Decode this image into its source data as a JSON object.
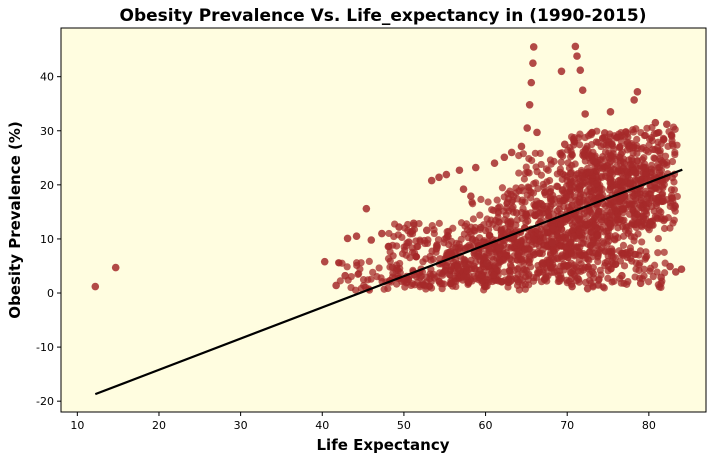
{
  "chart_data": {
    "type": "scatter",
    "title": "Obesity Prevalence Vs. Life_expectancy in (1990-2015)",
    "xlabel": "Life Expectancy",
    "ylabel": "Obesity Prevalence (%)",
    "xlim": [
      8,
      87
    ],
    "ylim": [
      -22,
      49
    ],
    "xticks": [
      10,
      20,
      30,
      40,
      50,
      60,
      70,
      80
    ],
    "yticks": [
      -20,
      -10,
      0,
      10,
      20,
      30,
      40
    ],
    "grid": false,
    "legend": "none",
    "colors": {
      "background": "#FFFDE0",
      "point": "#A52A2A",
      "regression_line": "#000000"
    },
    "series": [
      {
        "kind": "points",
        "points": [
          [
            12.2,
            1.2
          ],
          [
            14.7,
            4.7
          ],
          [
            40.3,
            5.8
          ],
          [
            41.7,
            1.4
          ],
          [
            42.8,
            3.2
          ],
          [
            43.1,
            10.1
          ],
          [
            44.2,
            10.5
          ],
          [
            45.4,
            15.6
          ],
          [
            46.0,
            9.8
          ],
          [
            47.3,
            11.0
          ],
          [
            48.1,
            8.6
          ],
          [
            49.4,
            12.2
          ],
          [
            50.6,
            9.4
          ],
          [
            51.2,
            12.9
          ],
          [
            52.1,
            3.1
          ],
          [
            52.8,
            11.6
          ],
          [
            53.4,
            20.8
          ],
          [
            54.3,
            21.4
          ],
          [
            54.0,
            8.2
          ],
          [
            55.2,
            21.9
          ],
          [
            55.6,
            3.4
          ],
          [
            56.8,
            22.7
          ],
          [
            57.3,
            19.2
          ],
          [
            58.2,
            17.9
          ],
          [
            58.8,
            23.2
          ],
          [
            59.4,
            12.1
          ],
          [
            60.2,
            5.6
          ],
          [
            61.1,
            24.0
          ],
          [
            61.7,
            8.4
          ],
          [
            62.3,
            25.1
          ],
          [
            63.2,
            26.0
          ],
          [
            63.8,
            14.8
          ],
          [
            64.4,
            27.1
          ],
          [
            65.1,
            30.5
          ],
          [
            65.4,
            34.8
          ],
          [
            65.6,
            38.9
          ],
          [
            65.8,
            42.5
          ],
          [
            65.9,
            45.5
          ],
          [
            66.3,
            29.7
          ],
          [
            66.8,
            16.5
          ],
          [
            67.4,
            2.8
          ],
          [
            68.2,
            9.3
          ],
          [
            69.3,
            41.0
          ],
          [
            69.7,
            27.5
          ],
          [
            70.4,
            22.1
          ],
          [
            70.6,
            1.2
          ],
          [
            71.0,
            45.6
          ],
          [
            71.2,
            43.8
          ],
          [
            71.6,
            41.2
          ],
          [
            71.9,
            37.5
          ],
          [
            72.2,
            33.1
          ],
          [
            72.5,
            0.8
          ],
          [
            73.3,
            24.3
          ],
          [
            73.8,
            1.5
          ],
          [
            74.6,
            29.6
          ],
          [
            75.3,
            33.5
          ],
          [
            75.9,
            5.3
          ],
          [
            76.7,
            3.2
          ],
          [
            77.4,
            27.8
          ],
          [
            78.2,
            35.7
          ],
          [
            78.6,
            37.2
          ],
          [
            79.0,
            1.8
          ],
          [
            80.1,
            12.6
          ],
          [
            80.8,
            31.5
          ],
          [
            81.5,
            2.9
          ],
          [
            82.2,
            31.2
          ],
          [
            82.6,
            4.9
          ],
          [
            83.3,
            3.9
          ],
          [
            84.0,
            4.4
          ]
        ],
        "bands": [
          {
            "x0": 42,
            "x1": 62,
            "y0": 1,
            "y1": 6
          },
          {
            "x0": 44,
            "x1": 65,
            "y0": 0.5,
            "y1": 3
          },
          {
            "x0": 50,
            "x1": 66,
            "y0": 1,
            "y1": 10
          },
          {
            "x0": 55,
            "x1": 70,
            "y0": 2,
            "y1": 12
          },
          {
            "x0": 60,
            "x1": 72,
            "y0": 2,
            "y1": 15
          },
          {
            "x0": 62,
            "x1": 74,
            "y0": 4,
            "y1": 20
          },
          {
            "x0": 66,
            "x1": 77,
            "y0": 2,
            "y1": 18
          },
          {
            "x0": 68,
            "x1": 80,
            "y0": 6,
            "y1": 24
          },
          {
            "x0": 70,
            "x1": 82,
            "y0": 10,
            "y1": 28
          },
          {
            "x0": 72,
            "x1": 83.5,
            "y0": 12,
            "y1": 30
          },
          {
            "x0": 76,
            "x1": 83.5,
            "y0": 16,
            "y1": 31
          },
          {
            "x0": 48,
            "x1": 60,
            "y0": 3,
            "y1": 13
          },
          {
            "x0": 58,
            "x1": 64,
            "y0": 8,
            "y1": 18
          },
          {
            "x0": 64,
            "x1": 70,
            "y0": 14,
            "y1": 26
          },
          {
            "x0": 70,
            "x1": 78,
            "y0": 20,
            "y1": 30
          },
          {
            "x0": 70,
            "x1": 75,
            "y0": 0.5,
            "y1": 5
          },
          {
            "x0": 74,
            "x1": 82,
            "y0": 1,
            "y1": 8
          }
        ]
      },
      {
        "kind": "regression_line",
        "x": [
          12.2,
          84.1
        ],
        "y": [
          -18.7,
          22.8
        ]
      }
    ]
  }
}
